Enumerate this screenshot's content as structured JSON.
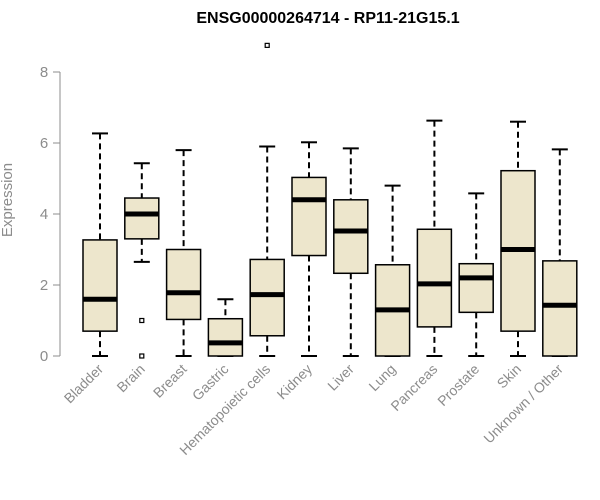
{
  "chart_data": {
    "type": "box",
    "title": "ENSG00000264714 - RP11-21G15.1",
    "ylabel": "Expression",
    "ylim": [
      0,
      8
    ],
    "yticks": [
      "0",
      "2",
      "4",
      "6",
      "8"
    ],
    "box_fill": "#ede6cc",
    "stroke_color": "#000000",
    "categories": [
      "Bladder",
      "Brain",
      "Breast",
      "Gastric",
      "Hematopoietic cells",
      "Kidney",
      "Liver",
      "Lung",
      "Pancreas",
      "Prostate",
      "Skin",
      "Unknown / Other"
    ],
    "boxes": [
      {
        "min": 0,
        "q1": 0.7,
        "median": 1.6,
        "q3": 3.27,
        "max": 6.27,
        "outliers": []
      },
      {
        "min": 2.65,
        "q1": 3.3,
        "median": 4.0,
        "q3": 4.45,
        "max": 5.43,
        "outliers": [
          1.0,
          0.0
        ]
      },
      {
        "min": 0,
        "q1": 1.03,
        "median": 1.78,
        "q3": 3.0,
        "max": 5.8,
        "outliers": []
      },
      {
        "min": 0,
        "q1": 0.0,
        "median": 0.37,
        "q3": 1.05,
        "max": 1.6,
        "outliers": []
      },
      {
        "min": 0,
        "q1": 0.57,
        "median": 1.73,
        "q3": 2.72,
        "max": 5.9,
        "outliers": [
          8.75
        ]
      },
      {
        "min": 0,
        "q1": 2.83,
        "median": 4.4,
        "q3": 5.03,
        "max": 6.02,
        "outliers": []
      },
      {
        "min": 0,
        "q1": 2.33,
        "median": 3.52,
        "q3": 4.4,
        "max": 5.85,
        "outliers": []
      },
      {
        "min": 0,
        "q1": 0.0,
        "median": 1.3,
        "q3": 2.57,
        "max": 4.8,
        "outliers": []
      },
      {
        "min": 0,
        "q1": 0.82,
        "median": 2.03,
        "q3": 3.57,
        "max": 6.63,
        "outliers": []
      },
      {
        "min": 0,
        "q1": 1.23,
        "median": 2.2,
        "q3": 2.6,
        "max": 4.58,
        "outliers": []
      },
      {
        "min": 0,
        "q1": 0.7,
        "median": 3.0,
        "q3": 5.22,
        "max": 6.6,
        "outliers": []
      },
      {
        "min": 0,
        "q1": 0.0,
        "median": 1.43,
        "q3": 2.68,
        "max": 5.82,
        "outliers": []
      }
    ]
  }
}
